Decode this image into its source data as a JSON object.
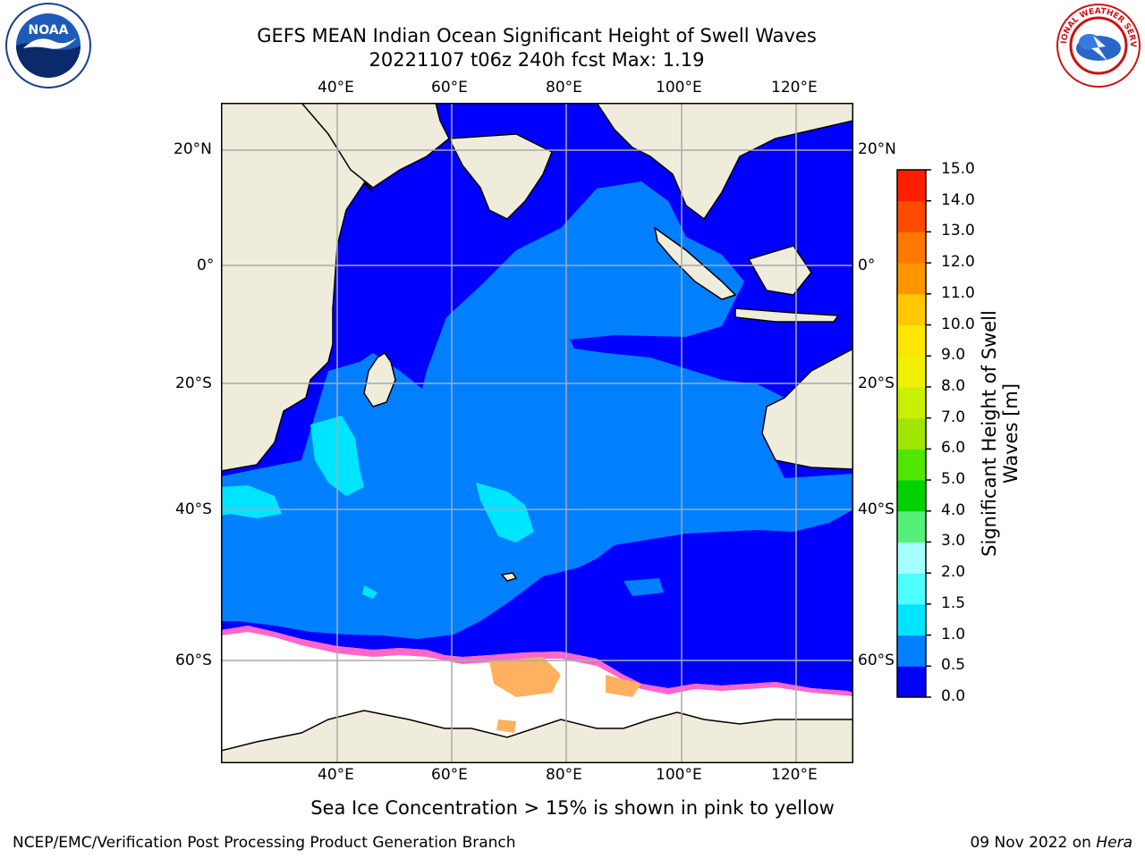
{
  "title": {
    "line1": "GEFS MEAN Indian Ocean Significant Height of Swell Waves",
    "line2": "20221107 t06z 240h fcst   Max: 1.19"
  },
  "map": {
    "lon_labels": [
      "40°E",
      "60°E",
      "80°E",
      "100°E",
      "120°E"
    ],
    "lat_labels": [
      "20°N",
      "0°",
      "20°S",
      "40°S",
      "60°S"
    ]
  },
  "colorbar": {
    "label": "Significant Height of Swell Waves [m]",
    "ticks": [
      "0.0",
      "0.5",
      "1.0",
      "1.5",
      "2.0",
      "3.0",
      "4.0",
      "5.0",
      "6.0",
      "7.0",
      "8.0",
      "9.0",
      "10.0",
      "11.0",
      "12.0",
      "13.0",
      "14.0",
      "15.0"
    ],
    "colors": [
      "#0000ff",
      "#0080ff",
      "#00e5ff",
      "#4dffff",
      "#a6ffff",
      "#55f07a",
      "#00d200",
      "#50e600",
      "#a0e600",
      "#c8f000",
      "#f0f000",
      "#ffe600",
      "#ffc800",
      "#ff9600",
      "#ff7800",
      "#ff4b00",
      "#ff1e00"
    ]
  },
  "legend_note": "Sea Ice Concentration > 15% is shown in pink to yellow",
  "footer": {
    "left": "NCEP/EMC/Verification Post Processing Product Generation Branch",
    "right_date": "09 Nov 2022 on ",
    "right_host": "Hera"
  },
  "logos": {
    "left": "NOAA",
    "right": "NATIONAL WEATHER SERVICE"
  }
}
